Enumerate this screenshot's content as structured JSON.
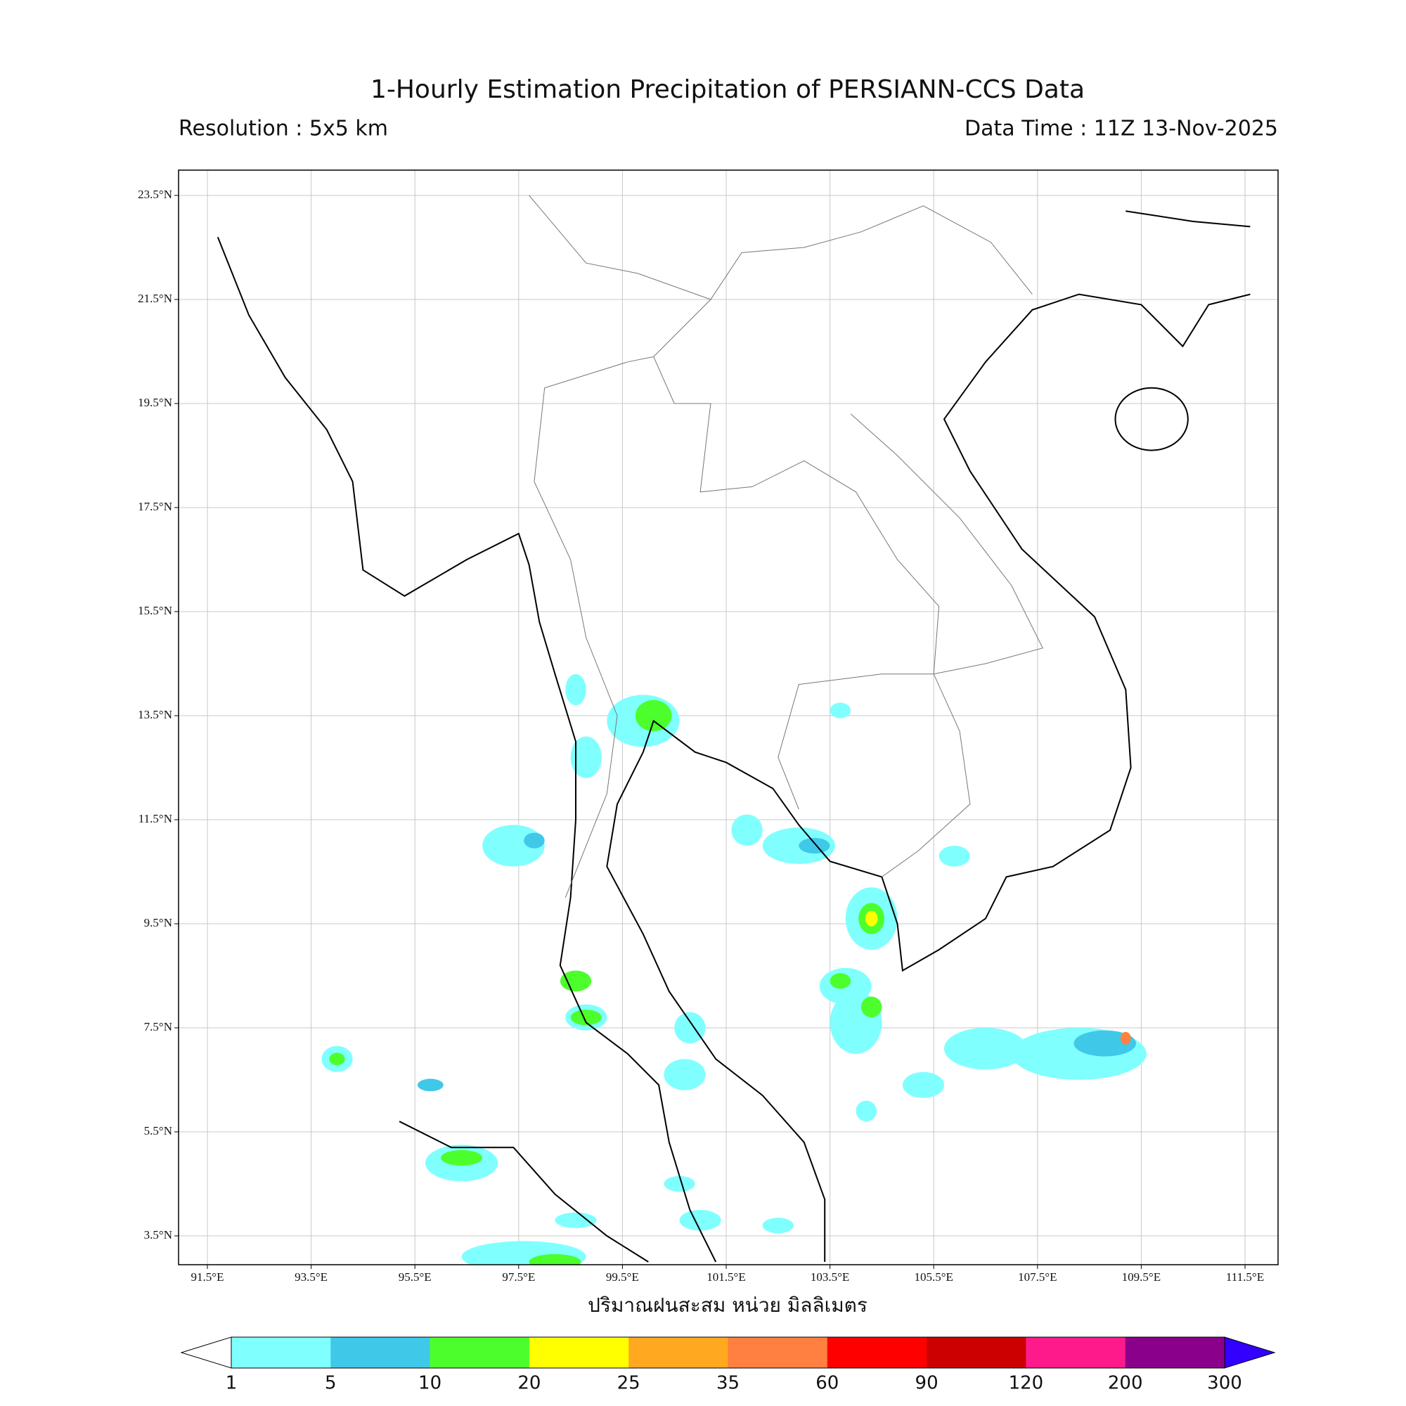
{
  "header": {
    "title": "1-Hourly Estimation Precipitation of PERSIANN-CCS Data",
    "resolution": "Resolution : 5x5 km",
    "data_time": "Data Time : 11Z 13-Nov-2025"
  },
  "map": {
    "lat_labels": [
      "23.5°N",
      "21.5°N",
      "19.5°N",
      "17.5°N",
      "15.5°N",
      "13.5°N",
      "11.5°N",
      "9.5°N",
      "7.5°N",
      "5.5°N",
      "3.5°N"
    ],
    "lon_labels": [
      "91.5°E",
      "93.5°E",
      "95.5°E",
      "97.5°E",
      "99.5°E",
      "101.5°E",
      "103.5°E",
      "105.5°E",
      "107.5°E",
      "109.5°E",
      "111.5°E"
    ],
    "axis_label": "ปริมาณฝนสะสม หน่วย มิลลิเมตร"
  },
  "colorbar": {
    "ticks": [
      1,
      5,
      10,
      20,
      25,
      35,
      60,
      90,
      120,
      200,
      300
    ],
    "colors": [
      "#80ffff",
      "#40c8e8",
      "#4cff2c",
      "#ffff00",
      "#ffa820",
      "#ff8040",
      "#ff0000",
      "#cc0000",
      "#ff1a8c",
      "#8b008b",
      "#3300ff"
    ]
  }
}
